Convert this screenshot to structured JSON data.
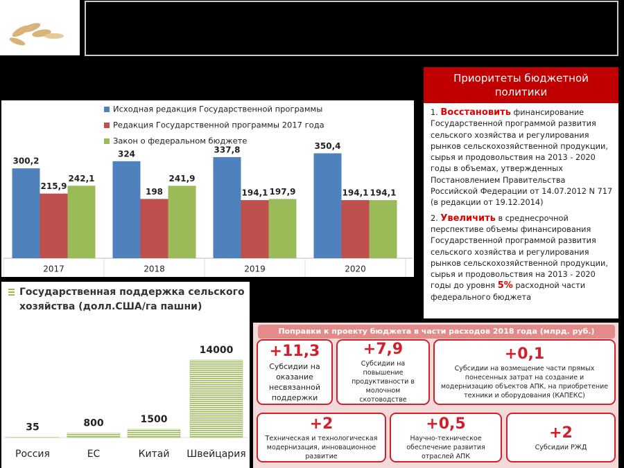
{
  "chart_data": [
    {
      "type": "bar",
      "categories": [
        "2017",
        "2018",
        "2019",
        "2020"
      ],
      "series": [
        {
          "name": "Исходная редакция Государственной программы",
          "color": "#4f81bd",
          "values": [
            300.2,
            324,
            337.8,
            350.4
          ],
          "value_labels": [
            "300,2",
            "324",
            "337,8",
            "350,4"
          ]
        },
        {
          "name": "Редакция Государственной программы 2017 года",
          "color": "#c0504d",
          "values": [
            215.9,
            198,
            194.1,
            194.1
          ],
          "value_labels": [
            "215,9",
            "198",
            "194,1",
            "194,1"
          ]
        },
        {
          "name": "Закон о федеральном бюджете",
          "color": "#9bbb59",
          "values": [
            242.1,
            241.9,
            197.9,
            194.1
          ],
          "value_labels": [
            "242,1",
            "241,9",
            "197,9",
            "194,1"
          ]
        }
      ],
      "ylim": [
        0,
        400
      ]
    },
    {
      "type": "bar",
      "title": "Государственная поддержка сельского хозяйства (долл.США/га пашни)",
      "categories": [
        "Россия",
        "ЕС",
        "Китай",
        "Швейцария"
      ],
      "values": [
        35,
        800,
        1500,
        14000
      ],
      "color": "#9bbb59",
      "ylim": [
        0,
        15000
      ]
    }
  ],
  "priorities": {
    "title": "Приоритеты бюджетной политики",
    "items": [
      {
        "number": "1.",
        "lead": "Восстановить",
        "text": "финансирование Государственной программой развития сельского хозяйства и регулирования рынков сельскохозяйственной продукции, сырья и продовольствия на 2013 - 2020 годы в объемах, утвержденных Постановлением Правительства Российской Федерации от 14.07.2012 N 717 (в редакции от 19.12.2014)"
      },
      {
        "number": "2.",
        "lead": "Увеличить",
        "text": "в среднесрочной перспективе объемы финансирования Государственной программой развития сельского хозяйства и регулирования рынков сельскохозяйственной продукции, сырья и продовольствия на 2013 - 2020 годы до уровня",
        "accent": "5%",
        "tail": "расходной части федерального бюджета"
      }
    ]
  },
  "amendments": {
    "title": "Поправки к проекту бюджета в части расходов 2018 года (млрд. руб.)",
    "cards": [
      {
        "amount": "+11,3",
        "text": "Субсидии на оказание несвязанной поддержки"
      },
      {
        "amount": "+7,9",
        "text": "Субсидии на повышение продуктивности в молочном скотоводстве"
      },
      {
        "amount": "+0,1",
        "text": "Субсидии на возмещение части прямых понесенных затрат на создание и модернизацию объектов АПК, на приобретение техники и оборудования (КАПЕКС)"
      },
      {
        "amount": "+2",
        "text": "Техническая и технологическая модернизация, инновационное развитие"
      },
      {
        "amount": "+0,5",
        "text": "Научно-техническое обеспечение развития отраслей АПК"
      },
      {
        "amount": "+2",
        "text": "Субсидии РЖД"
      }
    ]
  }
}
